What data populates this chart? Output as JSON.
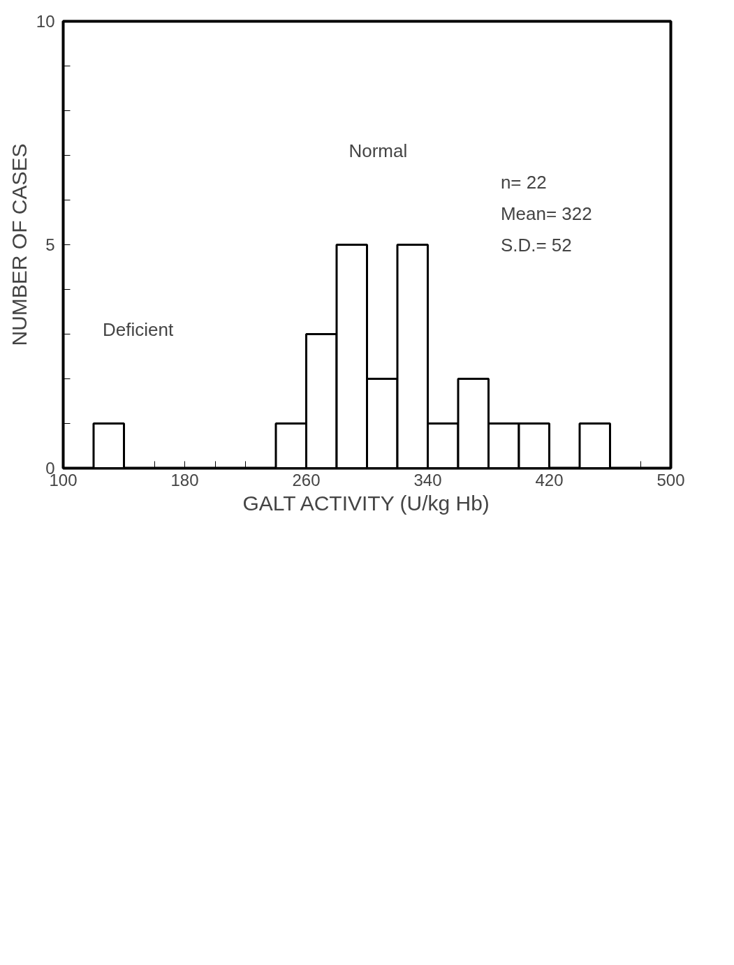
{
  "chart_data": {
    "type": "histogram",
    "xlabel": "GALT ACTIVITY (U/kg Hb)",
    "ylabel": "NUMBER OF CASES",
    "bins": [
      100,
      120,
      140,
      160,
      180,
      200,
      220,
      240,
      260,
      280,
      300,
      320,
      340,
      360,
      380,
      400,
      420,
      440,
      460,
      480,
      500
    ],
    "values": [
      0,
      1,
      0,
      0,
      0,
      0,
      0,
      1,
      3,
      5,
      2,
      5,
      1,
      2,
      1,
      1,
      0,
      1,
      0,
      0
    ],
    "color": "#000000",
    "xlim": [
      100,
      500
    ],
    "xticks": [
      100,
      {
        "value": 120,
        "label": null
      },
      {
        "value": 140,
        "label": null
      },
      {
        "value": 160,
        "label": null
      },
      180,
      {
        "value": 200,
        "label": null
      },
      {
        "value": 220,
        "label": null
      },
      {
        "value": 240,
        "label": null
      },
      260,
      {
        "value": 280,
        "label": null
      },
      {
        "value": 300,
        "label": null
      },
      {
        "value": 320,
        "label": null
      },
      340,
      {
        "value": 360,
        "label": null
      },
      {
        "value": 380,
        "label": null
      },
      {
        "value": 400,
        "label": null
      },
      420,
      {
        "value": 440,
        "label": null
      },
      {
        "value": 460,
        "label": null
      },
      {
        "value": 480,
        "label": null
      },
      500
    ],
    "ylim": [
      0,
      10
    ],
    "yticks": [
      0,
      {
        "value": 1,
        "label": null
      },
      {
        "value": 2,
        "label": null
      },
      {
        "value": 3,
        "label": null
      },
      {
        "value": 4,
        "label": null
      },
      5,
      {
        "value": 6,
        "label": null
      },
      {
        "value": 7,
        "label": null
      },
      {
        "value": 8,
        "label": null
      },
      {
        "value": 9,
        "label": null
      },
      10
    ],
    "grid": false,
    "annotations": [
      "Deficient",
      "Normal",
      "n= 22",
      "Mean= 322",
      "S.D.= 52"
    ]
  }
}
